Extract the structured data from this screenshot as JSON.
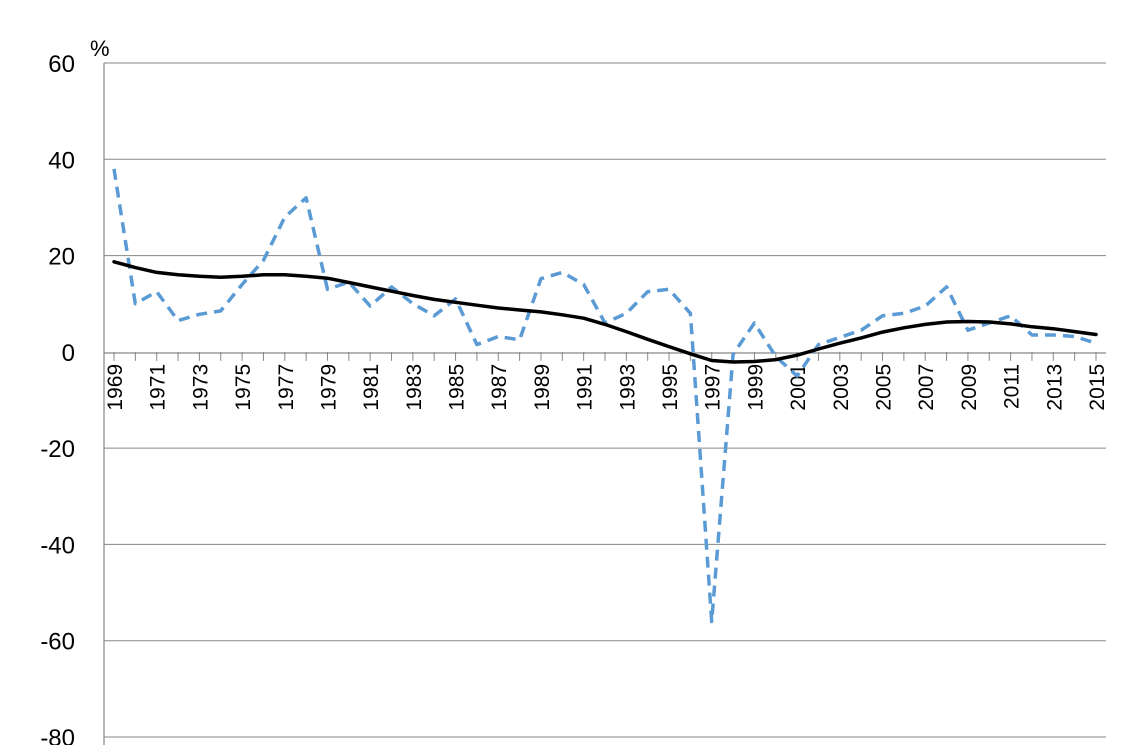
{
  "chart_data": {
    "type": "line",
    "title": "",
    "xlabel": "",
    "ylabel": "%",
    "ylim": [
      -80,
      60
    ],
    "yticks": [
      "60",
      "40",
      "20",
      "0",
      "-20",
      "-40",
      "-60",
      "-80"
    ],
    "grid": true,
    "x": [
      1969,
      1970,
      1971,
      1972,
      1973,
      1974,
      1975,
      1976,
      1977,
      1978,
      1979,
      1980,
      1981,
      1982,
      1983,
      1984,
      1985,
      1986,
      1987,
      1988,
      1989,
      1990,
      1991,
      1992,
      1993,
      1994,
      1995,
      1996,
      1997,
      1998,
      1999,
      2000,
      2001,
      2002,
      2003,
      2004,
      2005,
      2006,
      2007,
      2008,
      2009,
      2010,
      2011,
      2012,
      2013,
      2014,
      2015
    ],
    "xtick_labels": [
      "1969",
      "1971",
      "1973",
      "1975",
      "1977",
      "1979",
      "1981",
      "1983",
      "1985",
      "1987",
      "1989",
      "1991",
      "1993",
      "1995",
      "1997",
      "1999",
      "2001",
      "2003",
      "2005",
      "2007",
      "2009",
      "2011",
      "2013",
      "2015"
    ],
    "series": [
      {
        "style": "dashed",
        "color": "#5b9bd5",
        "values": [
          38,
          10,
          12.5,
          6.5,
          7.8,
          8.5,
          14,
          19,
          28,
          32,
          13,
          14.5,
          9.5,
          13.5,
          10,
          7.5,
          11,
          1.5,
          3.2,
          2.5,
          15.2,
          16.5,
          14,
          6,
          8,
          12.5,
          13,
          8,
          -56,
          -0.5,
          6,
          -1,
          -5,
          1.5,
          3,
          4.5,
          7.5,
          8,
          9.5,
          13.5,
          4.5,
          6,
          7.5,
          3.5,
          3.5,
          3.2,
          1.8
        ]
      },
      {
        "style": "solid",
        "color": "#000000",
        "values": [
          18.7,
          17.5,
          16.5,
          16,
          15.7,
          15.5,
          15.7,
          16,
          16,
          15.7,
          15.3,
          14.4,
          13.5,
          12.6,
          11.7,
          10.9,
          10.3,
          9.7,
          9.1,
          8.7,
          8.3,
          7.7,
          7,
          5.7,
          4.2,
          2.6,
          1.1,
          -0.4,
          -1.8,
          -2.1,
          -2,
          -1.6,
          -0.7,
          0.6,
          1.8,
          2.9,
          4.1,
          5,
          5.7,
          6.2,
          6.3,
          6.2,
          5.8,
          5.2,
          4.8,
          4.2,
          3.6
        ]
      }
    ]
  }
}
